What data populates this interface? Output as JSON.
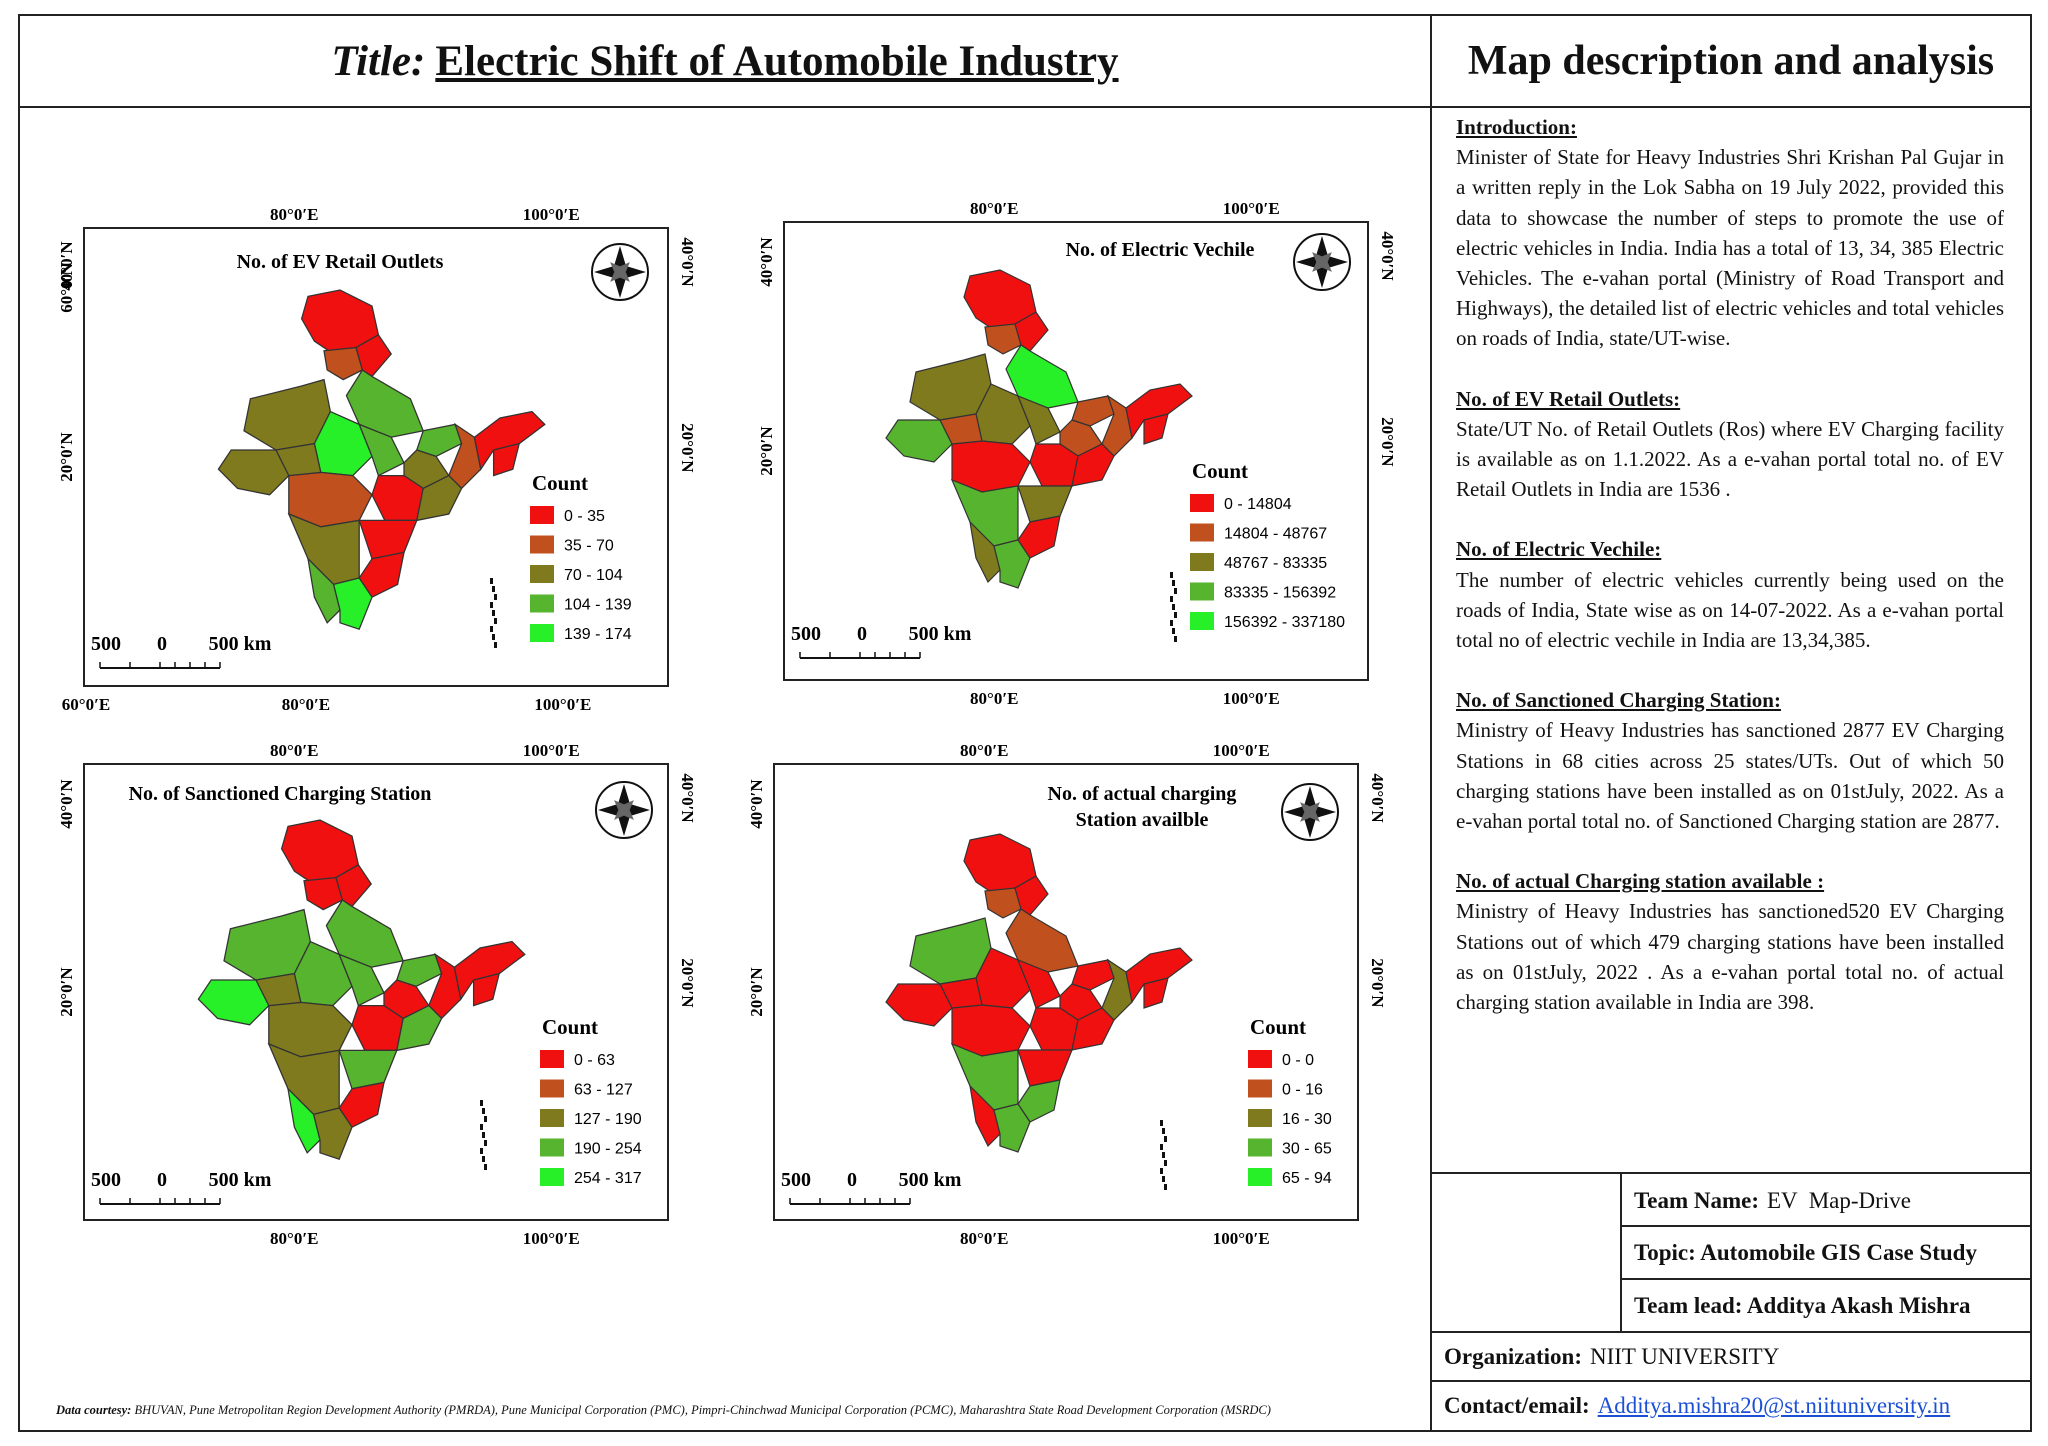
{
  "header": {
    "title_prefix": "Title:",
    "title": "Electric Shift of Automobile Industry",
    "side_title": "Map description and analysis"
  },
  "maps": [
    {
      "title_lines": [
        "No. of EV Retail Outlets"
      ],
      "legend_title": "Count",
      "legend": [
        {
          "label": "0 - 35",
          "color": "#f01010"
        },
        {
          "label": "35 - 70",
          "color": "#c0501e"
        },
        {
          "label": "70 - 104",
          "color": "#7f7a1e"
        },
        {
          "label": "104 - 139",
          "color": "#56b42e"
        },
        {
          "label": "139 - 174",
          "color": "#28f028"
        }
      ],
      "top_labels": [
        "80°0′E",
        "100°0′E"
      ],
      "bottom_labels": [
        "60°0′E",
        "80°0′E",
        "100°0′E"
      ],
      "left_labels": [
        "60°0′N",
        "40°0′N",
        "20°0′N"
      ],
      "right_labels": [
        "40°0′N",
        "20°0′N"
      ],
      "scale": [
        "500",
        "0",
        "500 km"
      ]
    },
    {
      "title_lines": [
        "No. of Electric Vechile"
      ],
      "legend_title": "Count",
      "legend": [
        {
          "label": "0 - 14804",
          "color": "#f01010"
        },
        {
          "label": "14804 - 48767",
          "color": "#c0501e"
        },
        {
          "label": "48767 - 83335",
          "color": "#7f7a1e"
        },
        {
          "label": "83335 - 156392",
          "color": "#56b42e"
        },
        {
          "label": "156392 - 337180",
          "color": "#28f028"
        }
      ],
      "top_labels": [
        "80°0′E",
        "100°0′E"
      ],
      "bottom_labels": [
        "80°0′E",
        "100°0′E"
      ],
      "left_labels": [
        "40°0′N",
        "20°0′N"
      ],
      "right_labels": [
        "40°0′N",
        "20°0′N"
      ],
      "scale": [
        "500",
        "0",
        "500 km"
      ]
    },
    {
      "title_lines": [
        "No. of Sanctioned Charging Station"
      ],
      "legend_title": "Count",
      "legend": [
        {
          "label": "0 - 63",
          "color": "#f01010"
        },
        {
          "label": "63 - 127",
          "color": "#c0501e"
        },
        {
          "label": "127 - 190",
          "color": "#7f7a1e"
        },
        {
          "label": "190 - 254",
          "color": "#56b42e"
        },
        {
          "label": "254 - 317",
          "color": "#28f028"
        }
      ],
      "top_labels": [
        "80°0′E",
        "100°0′E"
      ],
      "bottom_labels": [
        "80°0′E",
        "100°0′E"
      ],
      "left_labels": [
        "40°0′N",
        "20°0′N"
      ],
      "right_labels": [
        "40°0′N",
        "20°0′N"
      ],
      "scale": [
        "500",
        "0",
        "500 km"
      ]
    },
    {
      "title_lines": [
        "No. of actual charging",
        "Station availble"
      ],
      "legend_title": "Count",
      "legend": [
        {
          "label": "0 - 0",
          "color": "#f01010"
        },
        {
          "label": "0 - 16",
          "color": "#c0501e"
        },
        {
          "label": "16 - 30",
          "color": "#7f7a1e"
        },
        {
          "label": "30 - 65",
          "color": "#56b42e"
        },
        {
          "label": "65 - 94",
          "color": "#28f028"
        }
      ],
      "top_labels": [
        "80°0′E",
        "100°0′E"
      ],
      "bottom_labels": [
        "80°0′E",
        "100°0′E"
      ],
      "left_labels": [
        "40°0′N",
        "20°0′N"
      ],
      "right_labels": [
        "40°0′N",
        "20°0′N"
      ],
      "scale": [
        "500",
        "0",
        "500 km"
      ]
    }
  ],
  "description": {
    "sections": [
      {
        "heading": "Introduction:",
        "text": "Minister of State for Heavy Industries Shri Krishan Pal Gujar in a written reply in the Lok Sabha on 19 July 2022, provided this data to showcase the number of steps to promote the use of electric vehicles in India. India has a total of 13, 34, 385 Electric Vehicles. The e-vahan portal (Ministry of Road Transport and Highways), the detailed list of electric vehicles and total vehicles on roads of India, state/UT-wise."
      },
      {
        "heading": "No. of EV Retail Outlets:",
        "text": " State/UT No. of Retail Outlets (Ros) where EV Charging facility is available as on 1.1.2022. As a e-vahan portal total no. of EV Retail Outlets in India are 1536 ."
      },
      {
        "heading": "No. of Electric Vechile:",
        "text": "The number of electric vehicles currently being used on the roads of India, State wise as on 14-07-2022. As a e-vahan portal total no of electric vechile in India are 13,34,385."
      },
      {
        "heading": "No. of Sanctioned Charging Station:",
        "text": "Ministry of Heavy Industries has sanctioned 2877 EV Charging Stations in 68 cities across 25 states/UTs. Out of which 50 charging stations have been installed as on 01stJuly, 2022. As a e-vahan portal total no. of Sanctioned Charging station are 2877."
      },
      {
        "heading": "No. of actual Charging station available :",
        "text": "Ministry of Heavy Industries has sanctioned520 EV Charging Stations out of which 479 charging stations have been installed as on 01stJuly, 2022 . As a e-vahan portal total no. of actual charging station available in India are 398."
      }
    ]
  },
  "team": {
    "name_label": "Team Name:",
    "name_value": "EV  Map-Drive",
    "topic": "Topic: Automobile GIS Case Study",
    "lead": "Team lead: Additya Akash Mishra",
    "org_label": "Organization:",
    "org_value": "NIIT UNIVERSITY",
    "contact_label": "Contact/email:",
    "contact_value": "Additya.mishra20@st.niituniversity.in"
  },
  "courtesy": {
    "label": "Data courtesy:",
    "text": " BHUVAN, Pune Metropolitan Region Development Authority (PMRDA), Pune Municipal Corporation (PMC), Pimpri-Chinchwad Municipal Corporation (PCMC), Maharashtra State Road Development Corporation (MSRDC)"
  },
  "region_fills": [
    [
      "#f01010",
      "#c0501e",
      "#f01010",
      "#7f7a1e",
      "#56b42e",
      "#28f028",
      "#56b42e",
      "#56b42e",
      "#7f7a1e",
      "#c0501e",
      "#f01010",
      "#7f7a1e",
      "#7f7a1e",
      "#c0501e",
      "#f01010",
      "#f01010",
      "#7f7a1e",
      "#56b42e",
      "#28f028",
      "#7f7a1e",
      "#f01010",
      "#f01010"
    ],
    [
      "#f01010",
      "#c0501e",
      "#f01010",
      "#7f7a1e",
      "#28f028",
      "#7f7a1e",
      "#7f7a1e",
      "#c0501e",
      "#c0501e",
      "#c0501e",
      "#f01010",
      "#f01010",
      "#56b42e",
      "#f01010",
      "#7f7a1e",
      "#f01010",
      "#56b42e",
      "#7f7a1e",
      "#56b42e",
      "#c0501e",
      "#f01010",
      "#f01010"
    ],
    [
      "#f01010",
      "#f01010",
      "#f01010",
      "#56b42e",
      "#56b42e",
      "#56b42e",
      "#56b42e",
      "#56b42e",
      "#f01010",
      "#f01010",
      "#f01010",
      "#56b42e",
      "#28f028",
      "#7f7a1e",
      "#56b42e",
      "#f01010",
      "#7f7a1e",
      "#28f028",
      "#7f7a1e",
      "#7f7a1e",
      "#f01010",
      "#f01010"
    ],
    [
      "#f01010",
      "#c0501e",
      "#f01010",
      "#56b42e",
      "#c0501e",
      "#f01010",
      "#f01010",
      "#f01010",
      "#f01010",
      "#7f7a1e",
      "#f01010",
      "#f01010",
      "#f01010",
      "#f01010",
      "#f01010",
      "#56b42e",
      "#56b42e",
      "#f01010",
      "#56b42e",
      "#f01010",
      "#f01010",
      "#f01010"
    ]
  ]
}
